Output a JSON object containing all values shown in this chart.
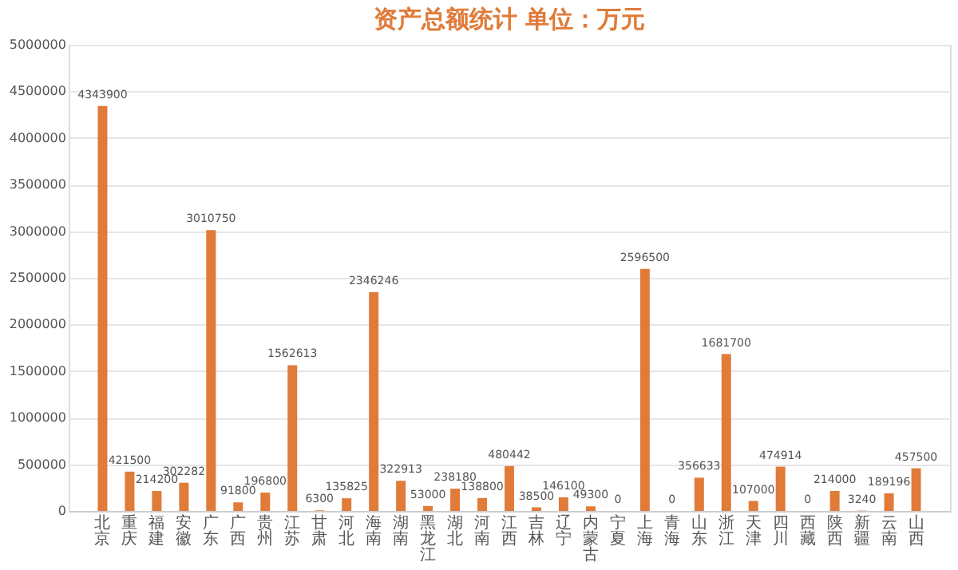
{
  "chart_data": {
    "type": "bar",
    "title": "资产总额统计      单位：万元",
    "categories": [
      "北京",
      "重庆",
      "福建",
      "安徽",
      "广东",
      "广西",
      "贵州",
      "江苏",
      "甘肃",
      "河北",
      "海南",
      "湖南",
      "黑龙江",
      "湖北",
      "河南",
      "江西",
      "吉林",
      "辽宁",
      "内蒙古",
      "宁夏",
      "上海",
      "青海",
      "山东",
      "浙江",
      "天津",
      "四川",
      "西藏",
      "陕西",
      "新疆",
      "云南",
      "山西"
    ],
    "values": [
      4343900,
      421500,
      214200,
      302282,
      3010750,
      91800,
      196800,
      1562613,
      6300,
      135825,
      2346246,
      322913,
      53000,
      238180,
      138800,
      480442,
      38500,
      146100,
      49300,
      0,
      2596500,
      0,
      356633,
      1681700,
      107000,
      474914,
      0,
      214000,
      3240,
      189196,
      457500
    ],
    "color": "#e07b39",
    "ylim": [
      0,
      5000000
    ],
    "yticks": [
      0,
      500000,
      1000000,
      1500000,
      2000000,
      2500000,
      3000000,
      3500000,
      4000000,
      4500000,
      5000000
    ],
    "grid": "y",
    "data_labels": true
  }
}
